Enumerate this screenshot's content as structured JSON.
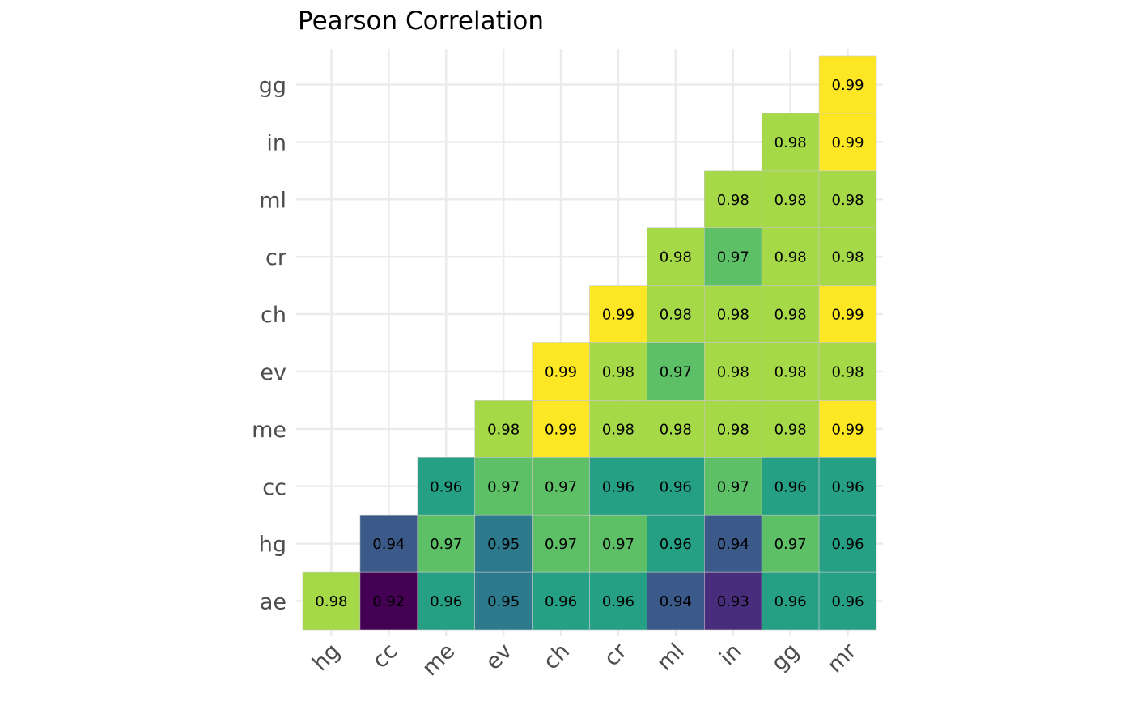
{
  "chart_data": {
    "type": "heatmap",
    "title": "Pearson Correlation",
    "xlabel": "",
    "ylabel": "",
    "x_categories": [
      "hg",
      "cc",
      "me",
      "ev",
      "ch",
      "cr",
      "ml",
      "in",
      "gg",
      "mr"
    ],
    "y_categories": [
      "ae",
      "hg",
      "cc",
      "me",
      "ev",
      "ch",
      "cr",
      "ml",
      "in",
      "gg"
    ],
    "color_scale": "viridis",
    "value_range": [
      0.92,
      0.99
    ],
    "grid": true,
    "legend": "none",
    "cells": [
      {
        "x": "hg",
        "y": "ae",
        "value": 0.98
      },
      {
        "x": "cc",
        "y": "ae",
        "value": 0.92
      },
      {
        "x": "me",
        "y": "ae",
        "value": 0.96
      },
      {
        "x": "ev",
        "y": "ae",
        "value": 0.95
      },
      {
        "x": "ch",
        "y": "ae",
        "value": 0.96
      },
      {
        "x": "cr",
        "y": "ae",
        "value": 0.96
      },
      {
        "x": "ml",
        "y": "ae",
        "value": 0.94
      },
      {
        "x": "in",
        "y": "ae",
        "value": 0.93
      },
      {
        "x": "gg",
        "y": "ae",
        "value": 0.96
      },
      {
        "x": "mr",
        "y": "ae",
        "value": 0.96
      },
      {
        "x": "cc",
        "y": "hg",
        "value": 0.94
      },
      {
        "x": "me",
        "y": "hg",
        "value": 0.97
      },
      {
        "x": "ev",
        "y": "hg",
        "value": 0.95
      },
      {
        "x": "ch",
        "y": "hg",
        "value": 0.97
      },
      {
        "x": "cr",
        "y": "hg",
        "value": 0.97
      },
      {
        "x": "ml",
        "y": "hg",
        "value": 0.96
      },
      {
        "x": "in",
        "y": "hg",
        "value": 0.94
      },
      {
        "x": "gg",
        "y": "hg",
        "value": 0.97
      },
      {
        "x": "mr",
        "y": "hg",
        "value": 0.96
      },
      {
        "x": "me",
        "y": "cc",
        "value": 0.96
      },
      {
        "x": "ev",
        "y": "cc",
        "value": 0.97
      },
      {
        "x": "ch",
        "y": "cc",
        "value": 0.97
      },
      {
        "x": "cr",
        "y": "cc",
        "value": 0.96
      },
      {
        "x": "ml",
        "y": "cc",
        "value": 0.96
      },
      {
        "x": "in",
        "y": "cc",
        "value": 0.97
      },
      {
        "x": "gg",
        "y": "cc",
        "value": 0.96
      },
      {
        "x": "mr",
        "y": "cc",
        "value": 0.96
      },
      {
        "x": "ev",
        "y": "me",
        "value": 0.98
      },
      {
        "x": "ch",
        "y": "me",
        "value": 0.99
      },
      {
        "x": "cr",
        "y": "me",
        "value": 0.98
      },
      {
        "x": "ml",
        "y": "me",
        "value": 0.98
      },
      {
        "x": "in",
        "y": "me",
        "value": 0.98
      },
      {
        "x": "gg",
        "y": "me",
        "value": 0.98
      },
      {
        "x": "mr",
        "y": "me",
        "value": 0.99
      },
      {
        "x": "ch",
        "y": "ev",
        "value": 0.99
      },
      {
        "x": "cr",
        "y": "ev",
        "value": 0.98
      },
      {
        "x": "ml",
        "y": "ev",
        "value": 0.97
      },
      {
        "x": "in",
        "y": "ev",
        "value": 0.98
      },
      {
        "x": "gg",
        "y": "ev",
        "value": 0.98
      },
      {
        "x": "mr",
        "y": "ev",
        "value": 0.98
      },
      {
        "x": "cr",
        "y": "ch",
        "value": 0.99
      },
      {
        "x": "ml",
        "y": "ch",
        "value": 0.98
      },
      {
        "x": "in",
        "y": "ch",
        "value": 0.98
      },
      {
        "x": "gg",
        "y": "ch",
        "value": 0.98
      },
      {
        "x": "mr",
        "y": "ch",
        "value": 0.99
      },
      {
        "x": "ml",
        "y": "cr",
        "value": 0.98
      },
      {
        "x": "in",
        "y": "cr",
        "value": 0.97
      },
      {
        "x": "gg",
        "y": "cr",
        "value": 0.98
      },
      {
        "x": "mr",
        "y": "cr",
        "value": 0.98
      },
      {
        "x": "in",
        "y": "ml",
        "value": 0.98
      },
      {
        "x": "gg",
        "y": "ml",
        "value": 0.98
      },
      {
        "x": "mr",
        "y": "ml",
        "value": 0.98
      },
      {
        "x": "gg",
        "y": "in",
        "value": 0.98
      },
      {
        "x": "mr",
        "y": "in",
        "value": 0.99
      },
      {
        "x": "mr",
        "y": "gg",
        "value": 0.99
      }
    ],
    "colors": {
      "0.92": "#440154",
      "0.93": "#472d7b",
      "0.94": "#3b5a8a",
      "0.95": "#2c7a8c",
      "0.96": "#25a085",
      "0.97": "#5dbf66",
      "0.98": "#a5d948",
      "0.99": "#fde725",
      "grid": "#ebebeb",
      "cell_border": "#c8c8c8",
      "tick_text": "#4d4d4d"
    }
  }
}
